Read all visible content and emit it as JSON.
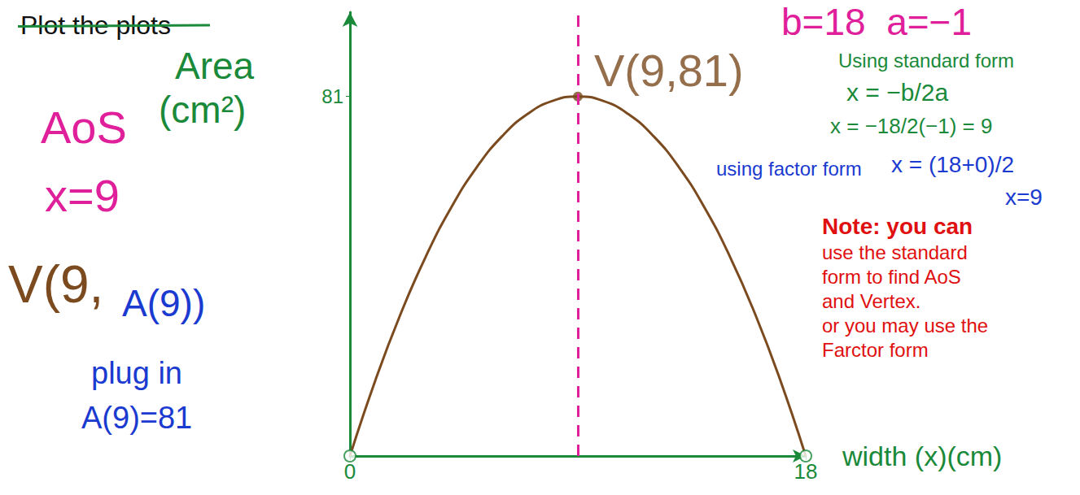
{
  "chart_data": {
    "type": "line",
    "title": "Plot the plots",
    "x": [
      0,
      1,
      2,
      3,
      4,
      5,
      6,
      7,
      8,
      9,
      10,
      11,
      12,
      13,
      14,
      15,
      16,
      17,
      18
    ],
    "values": [
      0,
      17,
      32,
      45,
      56,
      65,
      72,
      77,
      80,
      81,
      80,
      77,
      72,
      65,
      56,
      45,
      32,
      17,
      0
    ],
    "color": "#7b4a1f",
    "line_style": "solid",
    "xlim": [
      0,
      18
    ],
    "ylim": [
      0,
      100
    ],
    "xticks": [
      0,
      18
    ],
    "yticks": [
      81
    ],
    "x_label": "width (x)(cm)",
    "y_label": "Area (cm²)",
    "grid": false,
    "x_intercepts": {
      "x": [
        0,
        18
      ],
      "values": [
        0,
        0
      ],
      "color": "#1a8a3a",
      "marker": "circle"
    },
    "axis_of_symmetry": {
      "x": 9,
      "color": "#e0209a",
      "line_style": "dashed"
    },
    "vertex": {
      "x": 9,
      "y": 81,
      "label": "V(9,81)",
      "color": "#7b4a1f"
    },
    "annotations": [
      {
        "text": "AoS",
        "color": "#e0209a"
      },
      {
        "text": "x=9",
        "color": "#e0209a"
      },
      {
        "text": "V(9,",
        "color": "#7b4a1f"
      },
      {
        "text": "A(9))",
        "color": "#1a3ad0"
      },
      {
        "text": "plug in",
        "color": "#1a3ad0"
      },
      {
        "text": "A(9)=81",
        "color": "#1a3ad0"
      },
      {
        "text": "b=18  a=−1",
        "color": "#e0209a"
      },
      {
        "text": "Using standard form",
        "color": "#1a8a3a"
      },
      {
        "text": "x = −b/2a",
        "color": "#1a8a3a"
      },
      {
        "text": "x = −18/2(−1) = 9",
        "color": "#1a8a3a"
      },
      {
        "text": "using factor form",
        "color": "#1a3ad0"
      },
      {
        "text": "x = (18+0)/2",
        "color": "#1a3ad0"
      },
      {
        "text": "x=9",
        "color": "#1a3ad0"
      },
      {
        "text": "Note: you can",
        "color": "#e01010"
      },
      {
        "text": "use the standard",
        "color": "#e01010"
      },
      {
        "text": "form to find AoS",
        "color": "#e01010"
      },
      {
        "text": "and Vertex.",
        "color": "#e01010"
      },
      {
        "text": "or you may use the",
        "color": "#e01010"
      },
      {
        "text": "Farctor form",
        "color": "#e01010"
      }
    ]
  }
}
